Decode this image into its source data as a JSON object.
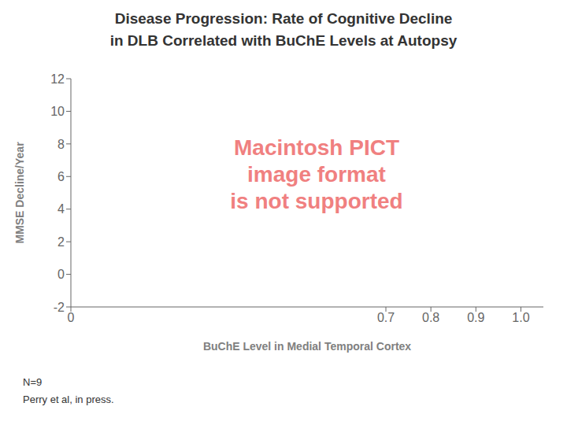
{
  "chart_data": {
    "type": "scatter",
    "title": "Disease Progression: Rate of Cognitive Decline\nin DLB Correlated with BuChE Levels at Autopsy",
    "xlabel": "BuChE Level in Medial Temporal Cortex",
    "ylabel": "MMSE Decline/Year",
    "x": [],
    "values": [],
    "xlim": [
      0,
      1.05
    ],
    "ylim": [
      -2,
      12
    ],
    "xticks": [
      0,
      0.7,
      0.8,
      0.9,
      {
        "value": 1.0,
        "label": "1.0"
      }
    ],
    "yticks": [
      -2,
      0,
      2,
      4,
      6,
      8,
      10,
      12
    ],
    "grid": false,
    "annotations": [
      "Macintosh PICT\nimage format\nis not supported",
      "N=9",
      "Perry et al, in press."
    ]
  }
}
